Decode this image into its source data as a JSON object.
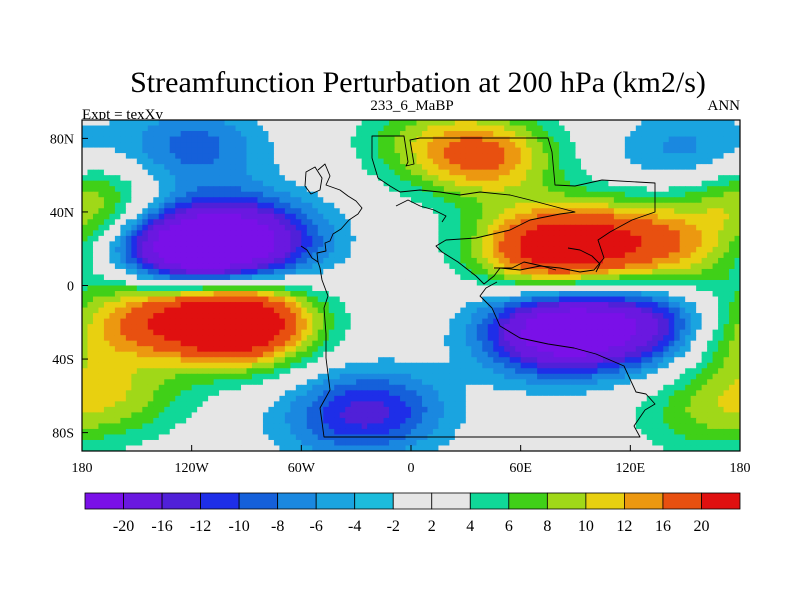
{
  "chart_data": {
    "type": "heatmap",
    "title": "Streamfunction Perturbation at 200 hPa (km2/s)",
    "left_string": "Expt = texXv",
    "center_string": "233_6_MaBP",
    "right_string": "ANN",
    "x_range": [
      -180,
      180
    ],
    "y_range": [
      -90,
      90
    ],
    "x_ticks": [
      {
        "value": -180,
        "label": "180"
      },
      {
        "value": -120,
        "label": "120W"
      },
      {
        "value": -60,
        "label": "60W"
      },
      {
        "value": 0,
        "label": "0"
      },
      {
        "value": 60,
        "label": "60E"
      },
      {
        "value": 120,
        "label": "120E"
      },
      {
        "value": 180,
        "label": "180"
      }
    ],
    "y_ticks": [
      {
        "value": 80,
        "label": "80N"
      },
      {
        "value": 40,
        "label": "40N"
      },
      {
        "value": 0,
        "label": "0"
      },
      {
        "value": -40,
        "label": "40S"
      },
      {
        "value": -80,
        "label": "80S"
      }
    ],
    "contour_levels": [
      -20,
      -16,
      -12,
      -10,
      -8,
      -6,
      -4,
      -2,
      2,
      4,
      6,
      8,
      10,
      12,
      16,
      20
    ],
    "colorbar_labels": [
      "-20",
      "-16",
      "-12",
      "-10",
      "-8",
      "-6",
      "-4",
      "-2",
      "2",
      "4",
      "6",
      "8",
      "10",
      "12",
      "16",
      "20"
    ],
    "colors": [
      "#7a10e8",
      "#6a18e0",
      "#5020d8",
      "#1e2ee8",
      "#1560da",
      "#1a88e0",
      "#1aa4e0",
      "#1cbcdc",
      "#e6e6e6",
      "#10d898",
      "#40d018",
      "#a0d818",
      "#e8d010",
      "#ec9810",
      "#e85010",
      "#e01010"
    ],
    "field_centers": [
      {
        "lon": -120,
        "lat": 20,
        "amp": -22
      },
      {
        "lon": -85,
        "lat": 25,
        "amp": -12
      },
      {
        "lon": -95,
        "lat": -20,
        "amp": 24
      },
      {
        "lon": -140,
        "lat": -15,
        "amp": 10
      },
      {
        "lon": 75,
        "lat": 20,
        "amp": 18
      },
      {
        "lon": 120,
        "lat": 25,
        "amp": 10
      },
      {
        "lon": 150,
        "lat": 15,
        "amp": 5
      },
      {
        "lon": 80,
        "lat": -25,
        "amp": -20
      },
      {
        "lon": 130,
        "lat": -22,
        "amp": -12
      },
      {
        "lon": 40,
        "lat": 70,
        "amp": 12
      },
      {
        "lon": 5,
        "lat": 80,
        "amp": 4
      },
      {
        "lon": -120,
        "lat": 75,
        "amp": -7
      },
      {
        "lon": 150,
        "lat": 72,
        "amp": -5
      },
      {
        "lon": -20,
        "lat": -68,
        "amp": -9
      },
      {
        "lon": -45,
        "lat": -75,
        "amp": -3
      },
      {
        "lon": -160,
        "lat": -60,
        "amp": 6
      },
      {
        "lon": 160,
        "lat": -70,
        "amp": 5
      },
      {
        "lon": -175,
        "lat": 45,
        "amp": 8
      },
      {
        "lon": 175,
        "lat": -30,
        "amp": 6
      }
    ]
  }
}
